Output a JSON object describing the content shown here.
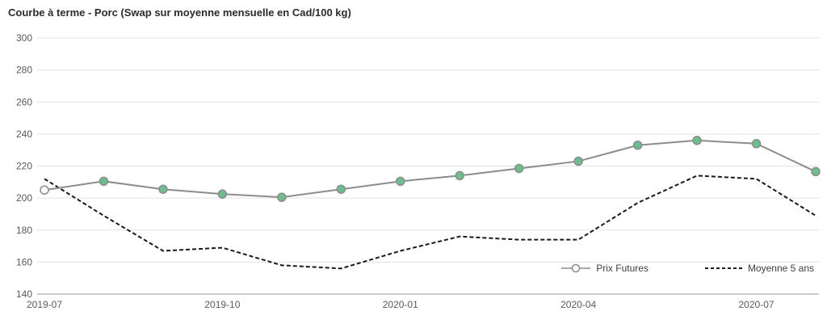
{
  "chart_data": {
    "type": "line",
    "title": "Courbe à terme - Porc (Swap sur moyenne mensuelle en Cad/100 kg)",
    "x": [
      "2019-07",
      "2019-08",
      "2019-09",
      "2019-10",
      "2019-11",
      "2019-12",
      "2020-01",
      "2020-02",
      "2020-03",
      "2020-04",
      "2020-05",
      "2020-06",
      "2020-07",
      "2020-08"
    ],
    "x_tick_labels": [
      "2019-07",
      "2019-10",
      "2020-01",
      "2020-04",
      "2020-07"
    ],
    "x_tick_indices": [
      0,
      3,
      6,
      9,
      12
    ],
    "ylim": [
      140,
      300
    ],
    "y_ticks": [
      140,
      160,
      180,
      200,
      220,
      240,
      260,
      280,
      300
    ],
    "grid": "horizontal",
    "legend_position": "inside-bottom-right",
    "colors": {
      "futures_line": "#8c8c8c",
      "futures_marker_fill": "#6dbd8e",
      "futures_marker_stroke": "#8c8c8c",
      "moyenne_line": "#1a1a1a",
      "gridline": "#e3e3e3",
      "axis_line": "#9a9a9a",
      "tick_label": "#5a5a5a"
    },
    "series": [
      {
        "name": "Prix Futures",
        "style": "solid-line-with-markers",
        "color": "#8c8c8c",
        "marker_fill": "#6dbd8e",
        "marker_stroke": "#8c8c8c",
        "first_marker_open": true,
        "values": [
          205,
          210.5,
          205.5,
          202.5,
          200.5,
          205.5,
          210.5,
          214,
          218.5,
          223,
          233,
          236,
          234,
          216.5
        ]
      },
      {
        "name": "Moyenne 5 ans",
        "style": "dashed-line",
        "color": "#1a1a1a",
        "values": [
          212,
          189,
          167,
          169,
          158,
          156,
          167,
          176,
          174,
          174,
          197,
          214,
          212,
          189
        ]
      }
    ]
  }
}
